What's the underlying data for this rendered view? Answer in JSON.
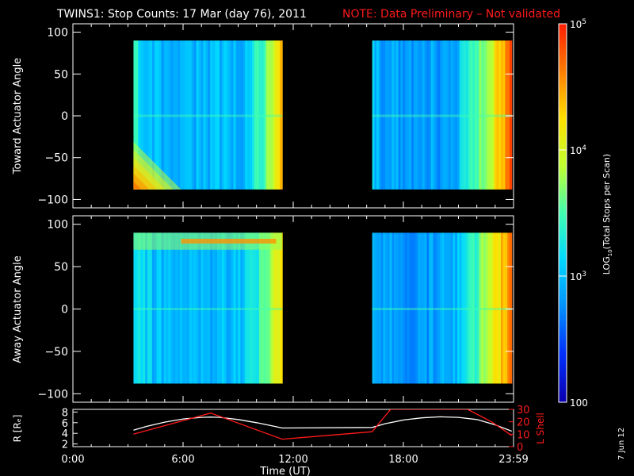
{
  "header": {
    "title": "TWINS1: Stop Counts: 17 Mar (day  76), 2011",
    "note": "NOTE: Data Preliminary – Not validated",
    "date_stamp": "7 Jun 12"
  },
  "colors": {
    "background": "#000000",
    "axes": "#ffffff",
    "note": "#ff1a1a",
    "r_trace": "#ffffff",
    "lshell_trace": "#ff1a1a",
    "colormap": [
      "#0a00b0",
      "#0030ff",
      "#0090ff",
      "#00d8ff",
      "#40ffb0",
      "#c0ff30",
      "#ffe000",
      "#ff8000",
      "#ff2000"
    ]
  },
  "chart_data": [
    {
      "type": "heatmap",
      "panel": "toward",
      "ylabel": "Toward Actuator Angle",
      "ylim": [
        -110,
        110
      ],
      "yticks": [
        "100",
        "50",
        "0",
        "−50",
        "−100"
      ],
      "xlim": [
        0,
        24
      ],
      "data_blocks": [
        {
          "t_start": 3.3,
          "t_end": 11.4,
          "angle_min": -88,
          "angle_max": 90,
          "log_counts_range": [
            2.6,
            4.6
          ]
        },
        {
          "t_start": 16.3,
          "t_end": 23.9,
          "angle_min": -88,
          "angle_max": 90,
          "log_counts_range": [
            2.3,
            4.7
          ]
        }
      ]
    },
    {
      "type": "heatmap",
      "panel": "away",
      "ylabel": "Away Actuator Angle",
      "ylim": [
        -110,
        110
      ],
      "yticks": [
        "100",
        "50",
        "0",
        "−50",
        "−100"
      ],
      "xlim": [
        0,
        24
      ],
      "data_blocks": [
        {
          "t_start": 3.3,
          "t_end": 11.4,
          "angle_min": -88,
          "angle_max": 90,
          "log_counts_range": [
            2.6,
            4.8
          ]
        },
        {
          "t_start": 16.3,
          "t_end": 23.9,
          "angle_min": -88,
          "angle_max": 90,
          "log_counts_range": [
            2.3,
            4.7
          ]
        }
      ]
    },
    {
      "type": "line",
      "panel": "orbit",
      "ylabel_left": "R [Rₑ]",
      "ylabel_right": "L Shell",
      "xlabel": "Time (UT)",
      "xticks": [
        "0:00",
        "6:00",
        "12:00",
        "18:00",
        "23:59"
      ],
      "yticks_left": [
        "2",
        "4",
        "6",
        "8"
      ],
      "yticks_right": [
        "0",
        "10",
        "20",
        "30"
      ],
      "ylim_left": [
        1.5,
        8.5
      ],
      "ylim_right": [
        0,
        30
      ],
      "series": [
        {
          "name": "R [Rₑ]",
          "axis": "left",
          "x": [
            3.3,
            4,
            5,
            6,
            7,
            7.5,
            8,
            9,
            10,
            11,
            11.4,
            16.3,
            17,
            18,
            19,
            20,
            21,
            22,
            23,
            23.9
          ],
          "values": [
            4.6,
            5.3,
            6.1,
            6.7,
            7.0,
            7.05,
            7.0,
            6.6,
            6.0,
            5.3,
            5.0,
            5.1,
            5.8,
            6.5,
            6.9,
            7.1,
            7.0,
            6.6,
            5.6,
            4.4
          ]
        },
        {
          "name": "L Shell",
          "axis": "right",
          "x": [
            3.3,
            7.5,
            11.4,
            16.3,
            17.3,
            17.8,
            21.5,
            22.8,
            23.9
          ],
          "values": [
            10,
            27,
            6,
            12,
            30,
            30,
            30,
            20,
            9
          ]
        }
      ]
    },
    {
      "type": "colorbar",
      "label": "LOG10(Total Stops per Scan)",
      "ticks": [
        "100",
        "10^3",
        "10^4",
        "10^5"
      ],
      "log_range": [
        2,
        5
      ]
    }
  ],
  "labels": {
    "p1_ylabel": "Toward Actuator Angle",
    "p2_ylabel": "Away Actuator Angle",
    "orbit_ylabel_left": "R [Rₑ]",
    "orbit_ylabel_right": "L Shell",
    "xlabel": "Time (UT)",
    "cb_label": "LOG",
    "cb_label_sub": "10",
    "cb_label_rest": "(Total Stops per Scan)"
  }
}
